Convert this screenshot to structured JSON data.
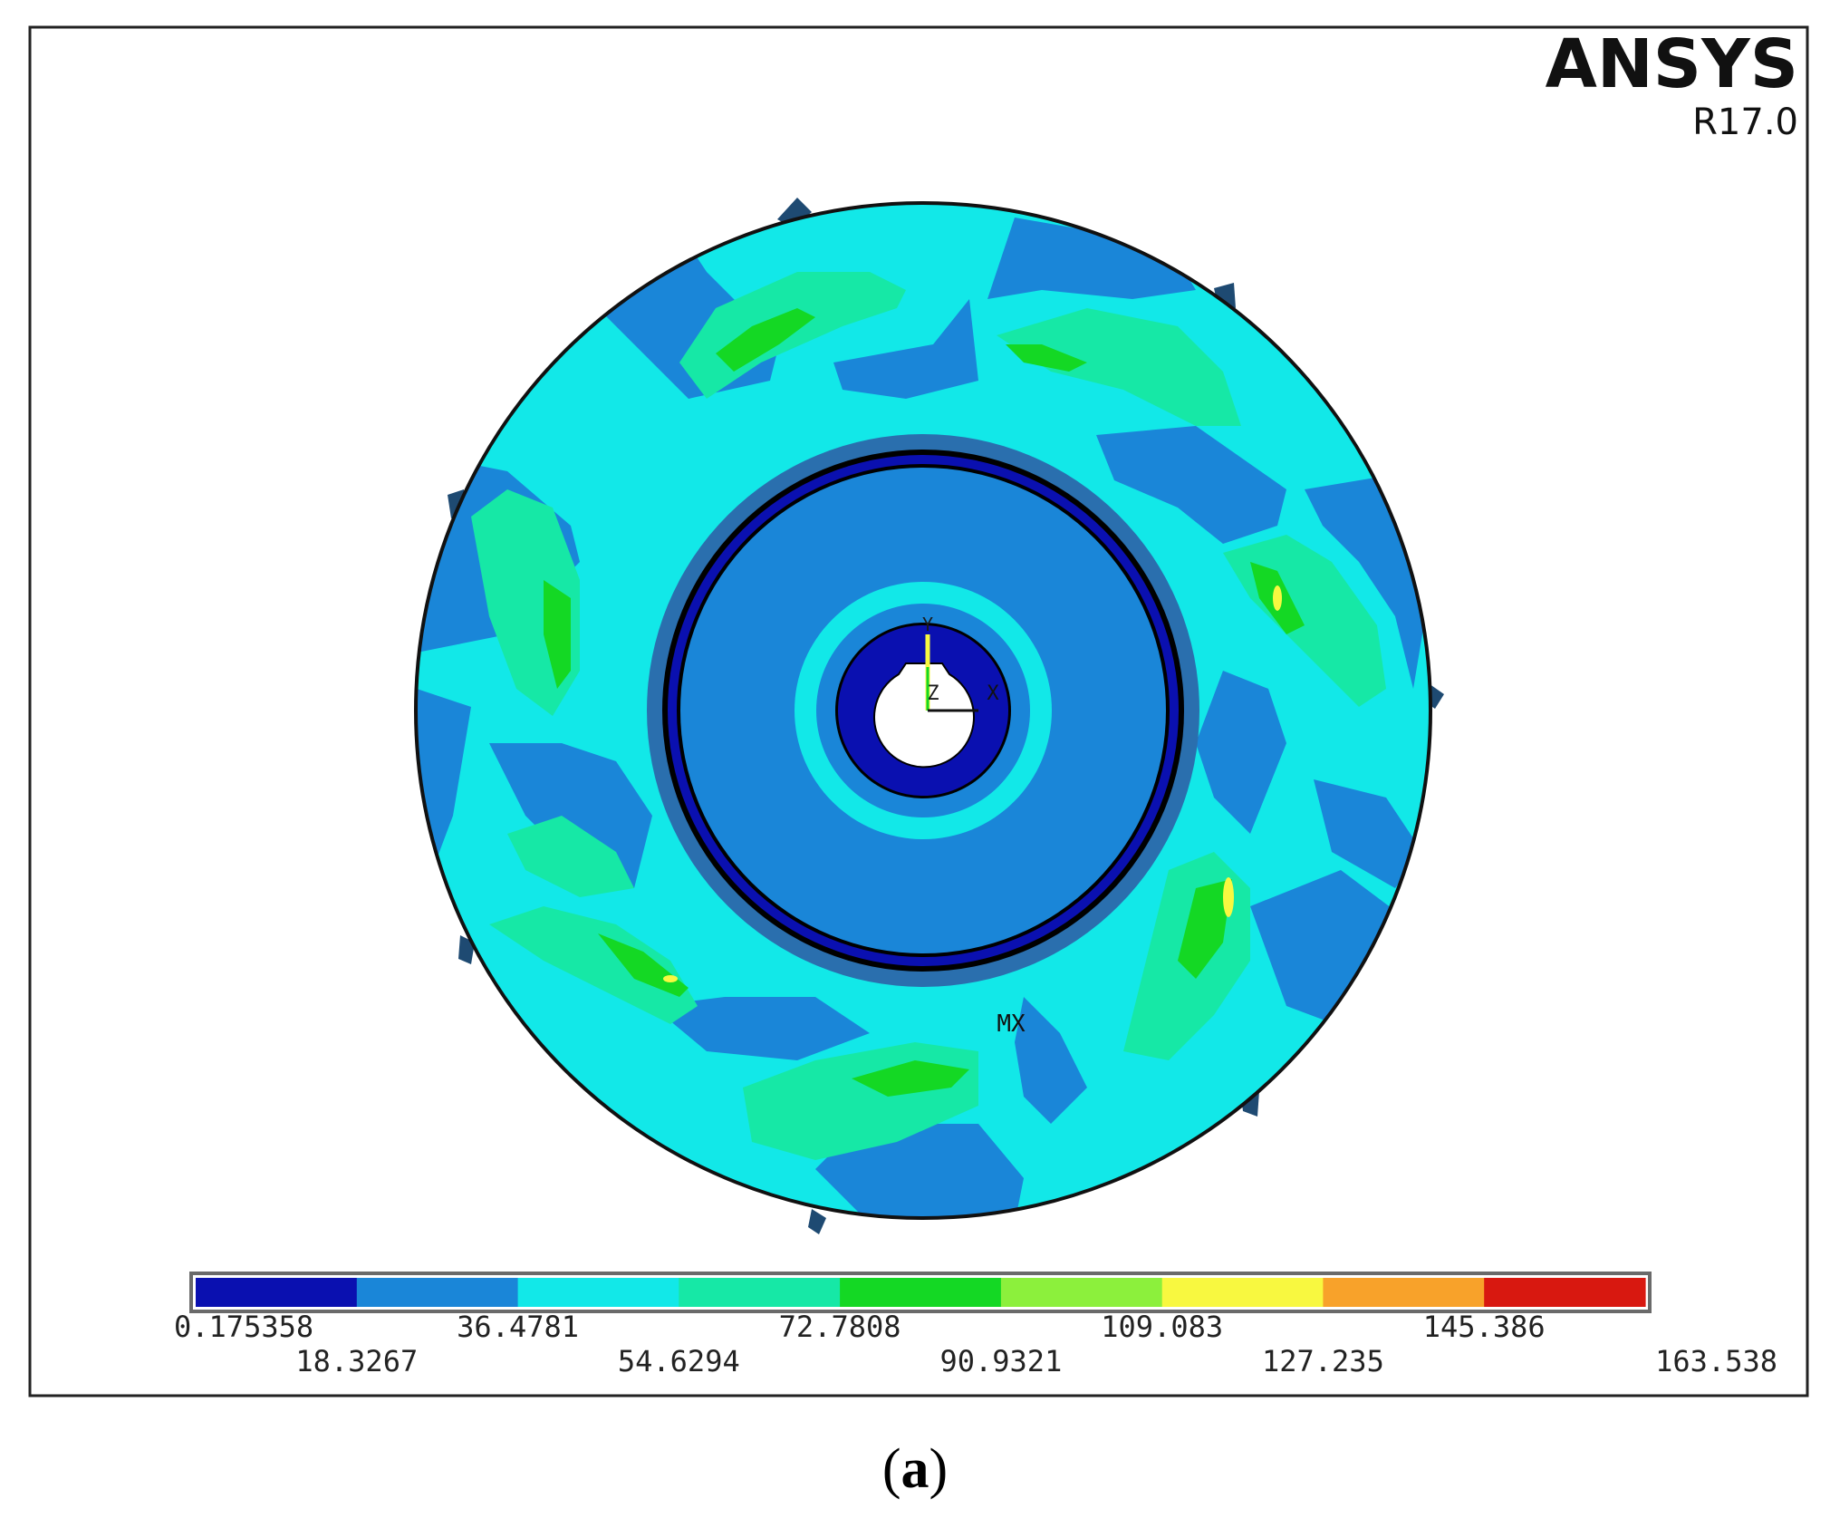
{
  "header": {
    "brand": "ANSYS",
    "version": "R17.0"
  },
  "markers": {
    "max": "MX",
    "axis_x": "X",
    "axis_y": "Y",
    "axis_z": "Z"
  },
  "legend": {
    "colors": [
      "#0a10b0",
      "#1a86d8",
      "#12e8e8",
      "#16e8a6",
      "#14d824",
      "#8cf03c",
      "#f8f840",
      "#f8a22a",
      "#d81810"
    ],
    "labels": [
      "0.175358",
      "18.3267",
      "36.4781",
      "54.6294",
      "72.7808",
      "90.9321",
      "109.083",
      "127.235",
      "145.386",
      "163.538"
    ]
  },
  "caption": {
    "open": "(",
    "letter": "a",
    "close": ")"
  },
  "colors": {
    "frame": "#222222",
    "band_dark": "#0a10b0",
    "band_blue": "#1a86d8",
    "band_cyan": "#12e8e8",
    "band_teal": "#16e8a6",
    "band_green": "#14d824",
    "band_yellow": "#f8f840"
  }
}
